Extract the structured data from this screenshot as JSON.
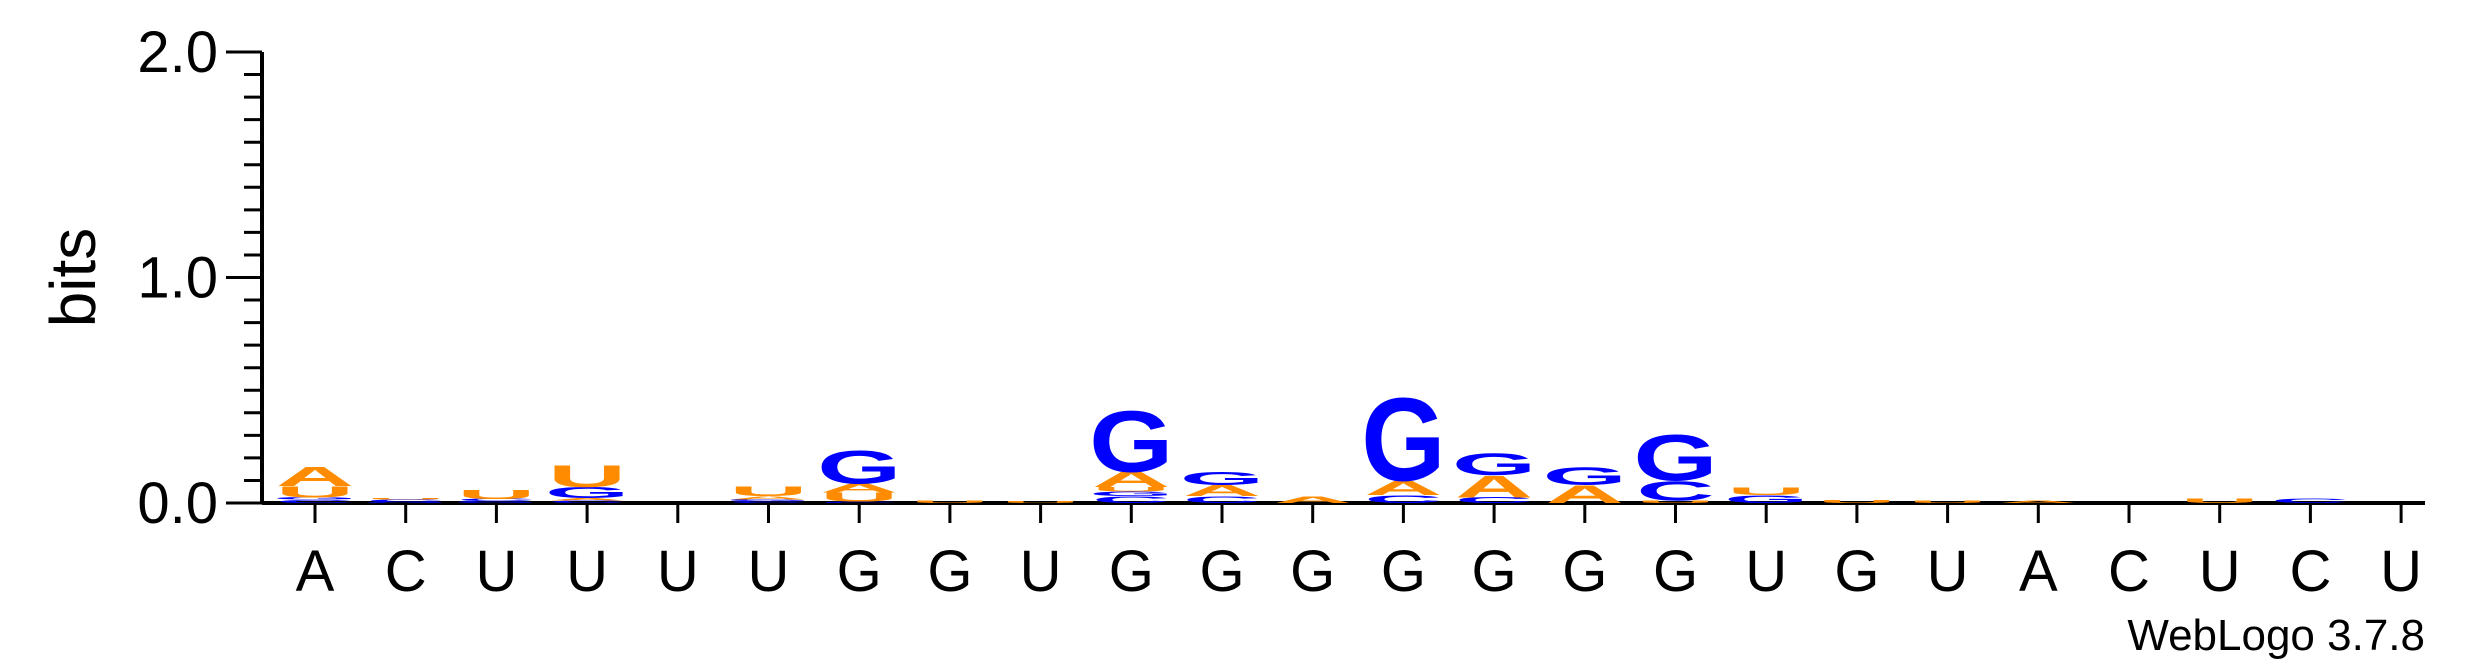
{
  "chart_data": {
    "type": "sequence_logo",
    "ylabel": "bits",
    "ylim": [
      0,
      2.0
    ],
    "yticks": [
      "0.0",
      "1.0",
      "2.0"
    ],
    "xlabels": [
      "A",
      "C",
      "U",
      "U",
      "U",
      "U",
      "G",
      "G",
      "U",
      "G",
      "G",
      "G",
      "G",
      "G",
      "G",
      "G",
      "U",
      "G",
      "U",
      "A",
      "C",
      "U",
      "C",
      "U"
    ],
    "colors": {
      "A": "#ff8c00",
      "U": "#ff8c00",
      "G": "#0000ff",
      "C": "#0000ff"
    },
    "positions": [
      [
        {
          "l": "C",
          "h": 0.015
        },
        {
          "l": "G",
          "h": 0.01
        },
        {
          "l": "U",
          "h": 0.05
        },
        {
          "l": "A",
          "h": 0.09
        }
      ],
      [
        {
          "l": "G",
          "h": 0.005
        },
        {
          "l": "C",
          "h": 0.01
        },
        {
          "l": "U",
          "h": 0.005
        }
      ],
      [
        {
          "l": "G",
          "h": 0.008
        },
        {
          "l": "C",
          "h": 0.01
        },
        {
          "l": "U",
          "h": 0.04
        }
      ],
      [
        {
          "l": "C",
          "h": 0.012
        },
        {
          "l": "A",
          "h": 0.01
        },
        {
          "l": "G",
          "h": 0.05
        },
        {
          "l": "U",
          "h": 0.1
        }
      ],
      [],
      [
        {
          "l": "C",
          "h": 0.008
        },
        {
          "l": "G",
          "h": 0.008
        },
        {
          "l": "A",
          "h": 0.014
        },
        {
          "l": "U",
          "h": 0.045
        }
      ],
      [
        {
          "l": "C",
          "h": 0.006
        },
        {
          "l": "U",
          "h": 0.04
        },
        {
          "l": "A",
          "h": 0.04
        },
        {
          "l": "G",
          "h": 0.15
        }
      ],
      [
        {
          "l": "U",
          "h": 0.01
        }
      ],
      [
        {
          "l": "U",
          "h": 0.008
        }
      ],
      [
        {
          "l": "C",
          "h": 0.03
        },
        {
          "l": "G",
          "h": 0.02
        },
        {
          "l": "U",
          "h": 0.02
        },
        {
          "l": "A",
          "h": 0.07
        },
        {
          "l": "G",
          "h": 0.28
        }
      ],
      [
        {
          "l": "C",
          "h": 0.03
        },
        {
          "l": "A",
          "h": 0.05
        },
        {
          "l": "G",
          "h": 0.06
        }
      ],
      [
        {
          "l": "A",
          "h": 0.03
        }
      ],
      [
        {
          "l": "C",
          "h": 0.035
        },
        {
          "l": "A",
          "h": 0.065
        },
        {
          "l": "G",
          "h": 0.38
        }
      ],
      [
        {
          "l": "C",
          "h": 0.025
        },
        {
          "l": "A",
          "h": 0.1
        },
        {
          "l": "G",
          "h": 0.1
        }
      ],
      [
        {
          "l": "A",
          "h": 0.08
        },
        {
          "l": "G",
          "h": 0.08
        }
      ],
      [
        {
          "l": "U",
          "h": 0.01
        },
        {
          "l": "C",
          "h": 0.09
        },
        {
          "l": "G",
          "h": 0.21
        }
      ],
      [
        {
          "l": "G",
          "h": 0.035
        },
        {
          "l": "U",
          "h": 0.035
        }
      ],
      [
        {
          "l": "U",
          "h": 0.015
        }
      ],
      [
        {
          "l": "U",
          "h": 0.01
        }
      ],
      [
        {
          "l": "A",
          "h": 0.01
        }
      ],
      [],
      [
        {
          "l": "U",
          "h": 0.02
        }
      ],
      [
        {
          "l": "C",
          "h": 0.02
        }
      ],
      []
    ]
  },
  "credit": "WebLogo 3.7.8"
}
